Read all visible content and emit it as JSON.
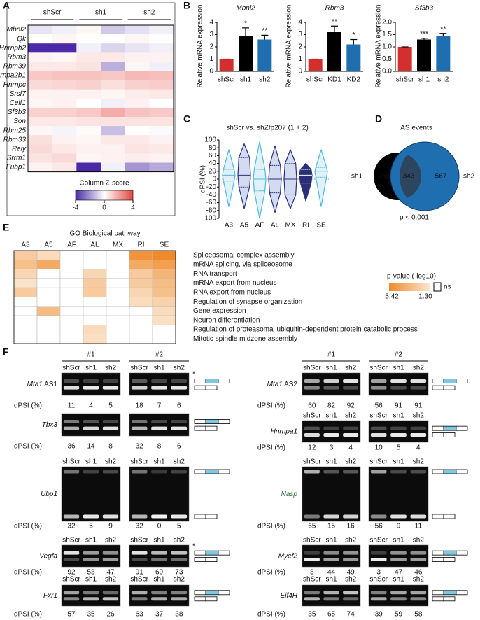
{
  "panel_labels": [
    "A",
    "B",
    "C",
    "D",
    "E",
    "F"
  ],
  "heatmap": {
    "groups": [
      "shScr",
      "sh1",
      "sh2"
    ],
    "genes": [
      "Mbnl2",
      "Qk",
      "Hnrnph2",
      "Rbm3",
      "Rbm39",
      "Hnrnpa2b1",
      "Hnrnpc",
      "Srsf7",
      "Celf1",
      "Sf3b3",
      "Son",
      "Rbm25",
      "Rbm33",
      "Raly",
      "Srrm1",
      "Fubp1"
    ],
    "values": [
      [
        -0.5,
        -0.3,
        0.2,
        -1,
        -0.6,
        -0.3
      ],
      [
        0,
        0.2,
        0,
        0,
        0.2,
        0
      ],
      [
        -4,
        -4,
        -0.3,
        -0.8,
        -0.5,
        -0.3
      ],
      [
        0.3,
        0.2,
        0.5,
        0.5,
        0.3,
        0.3
      ],
      [
        0.5,
        0.5,
        0.6,
        -1.5,
        0.2,
        -0.3
      ],
      [
        1.2,
        1.3,
        1.3,
        1.2,
        1.5,
        1.4
      ],
      [
        0.8,
        0.9,
        1,
        0.7,
        1,
        1.1
      ],
      [
        0.3,
        0.3,
        0.3,
        0.2,
        0.4,
        0.5
      ],
      [
        0.2,
        0.3,
        0,
        -0.3,
        0.3,
        0
      ],
      [
        1,
        1,
        1.2,
        1.8,
        1.3,
        1.2
      ],
      [
        0.5,
        0.5,
        0.6,
        0.6,
        0.6,
        0.6
      ],
      [
        0.2,
        -0.2,
        0.1,
        -1.2,
        0,
        -0.1
      ],
      [
        0.7,
        0.3,
        0.2,
        0.5,
        0.5,
        0.3
      ],
      [
        0.8,
        0.5,
        0.3,
        0.3,
        0.6,
        0.5
      ],
      [
        0.6,
        0.8,
        0.2,
        0.3,
        0.4,
        0.3
      ],
      [
        0.3,
        0.5,
        -4,
        -0.3,
        -2,
        -1.6
      ]
    ],
    "colorbar_label": "Column Z-score",
    "zlim": [
      -4,
      4
    ],
    "zticks": [
      -4,
      0,
      4
    ],
    "low_color": "#4a2aa6",
    "mid_color": "#ffffff",
    "high_color": "#e4473f"
  },
  "chart_data": [
    {
      "type": "bar",
      "title": "Mbnl2",
      "ylabel": "Relative mRNA expression",
      "categories": [
        "shScr",
        "sh1",
        "sh2"
      ],
      "values": [
        1,
        2.9,
        2.6
      ],
      "errors": [
        0,
        0.65,
        0.35
      ],
      "annotations": [
        null,
        "*",
        "**"
      ],
      "colors": [
        "#d32f2f",
        "#000000",
        "#1f6fb0"
      ],
      "ylim": [
        0,
        4
      ],
      "yticks": [
        0,
        1,
        2,
        3,
        4
      ]
    },
    {
      "type": "bar",
      "title": "Rbm3",
      "ylabel": "Relative mRNA expression",
      "categories": [
        "shScr",
        "KD1",
        "KD2"
      ],
      "values": [
        1,
        3.2,
        2.2
      ],
      "errors": [
        0,
        0.5,
        0.4
      ],
      "annotations": [
        null,
        "**",
        "*"
      ],
      "colors": [
        "#d32f2f",
        "#000000",
        "#1f6fb0"
      ],
      "ylim": [
        0,
        4
      ],
      "yticks": [
        0,
        1,
        2,
        3,
        4
      ]
    },
    {
      "type": "bar",
      "title": "Sf3b3",
      "ylabel": "Relative mRNA expression",
      "categories": [
        "shScr",
        "sh1",
        "sh2"
      ],
      "values": [
        1,
        1.3,
        1.45
      ],
      "errors": [
        0,
        0.05,
        0.1
      ],
      "annotations": [
        null,
        "***",
        "**"
      ],
      "colors": [
        "#d32f2f",
        "#000000",
        "#1f6fb0"
      ],
      "ylim": [
        0,
        2
      ],
      "yticks": [
        {
          "value": 0,
          "label": "0.0"
        },
        {
          "value": 0.5,
          "label": "0.5"
        },
        {
          "value": 1,
          "label": "1.0"
        },
        {
          "value": 1.5,
          "label": "1.5"
        },
        {
          "value": 2,
          "label": "2.0"
        }
      ]
    },
    {
      "type": "violin",
      "title": "shScr vs. shZfp207 (1 + 2)",
      "ylabel": "dPSI (%)",
      "categories": [
        "A3",
        "A5",
        "AF",
        "AL",
        "MX",
        "RI",
        "SE"
      ],
      "min": [
        -70,
        -75,
        -100,
        -85,
        -75,
        -55,
        -70
      ],
      "q1": [
        -5,
        -20,
        -30,
        -35,
        -40,
        -10,
        5
      ],
      "median": [
        10,
        10,
        0,
        0,
        0,
        10,
        20
      ],
      "q3": [
        25,
        55,
        25,
        35,
        40,
        25,
        30
      ],
      "max": [
        75,
        90,
        95,
        85,
        75,
        40,
        75
      ],
      "colors": [
        "#4fb8dc",
        "#2b2f7a",
        "#4fb8dc",
        "#2b2f7a",
        "#2b2f7a",
        "#2b2f7a",
        "#4fb8dc"
      ],
      "fills": [
        "#dff2f9",
        "#d3dbf0",
        "#dff2f9",
        "#d3dbf0",
        "#d3dbf0",
        "#2b2f7a",
        "#dff2f9"
      ],
      "ylim": [
        -100,
        100
      ],
      "yticks": [
        -100,
        -80,
        -60,
        -40,
        -20,
        0,
        20,
        40,
        60,
        80,
        100
      ],
      "zero_line": true
    }
  ],
  "venn": {
    "title": "AS events",
    "sets": [
      "sh1",
      "sh2"
    ],
    "counts": [
      258,
      343,
      567
    ],
    "colors": [
      "#000000",
      "#1f6fb0"
    ],
    "note": "p < 0.001"
  },
  "go": {
    "title": "GO Biological pathway",
    "columns": [
      "A3",
      "A5",
      "AF",
      "AL",
      "MX",
      "RI",
      "SE"
    ],
    "terms": [
      "Spliceosomal complex assembly",
      "mRNA splicing, via spliceosome",
      "RNA transport",
      "mRNA export from nucleus",
      "RNA export from nucleus",
      "Regulation of synapse organization",
      "Gene expression",
      "Neuron differentiation",
      "Regulation of proteasomal ubiquitin-dependent protein catabolic process",
      "Mitotic spindle midzone assembly"
    ],
    "values": [
      [
        2.5,
        1.8,
        null,
        null,
        null,
        5,
        5.4
      ],
      [
        3,
        4,
        null,
        null,
        null,
        4,
        4.5
      ],
      [
        2,
        null,
        null,
        2,
        null,
        2.5,
        3.5
      ],
      [
        1.5,
        null,
        null,
        2.5,
        null,
        2.5,
        3.2
      ],
      [
        2.5,
        null,
        null,
        2.5,
        null,
        2,
        3
      ],
      [
        null,
        null,
        null,
        null,
        null,
        1.8,
        2.2
      ],
      [
        null,
        3.2,
        null,
        null,
        null,
        null,
        1.8
      ],
      [
        null,
        null,
        null,
        null,
        null,
        null,
        1.6
      ],
      [
        null,
        null,
        null,
        1.8,
        null,
        null,
        null
      ],
      [
        null,
        null,
        null,
        1.6,
        null,
        null,
        null
      ]
    ],
    "legend_title": "p-value (-log10)",
    "scale": [
      5.42,
      {
        "value": 1.3,
        "label": "1.30"
      }
    ],
    "ns_label": "ns",
    "high_color": "#ef8a2a",
    "low_color": "#fbe6cf"
  },
  "gels": {
    "groups": [
      "#1",
      "#2"
    ],
    "dpsi_label": "dPSI (%)",
    "marker_color": "#7ec8e3",
    "left": [
      {
        "gene": "Mta1",
        "suffix": "AS1",
        "lanes": [
          "shScr",
          "sh1",
          "sh2"
        ],
        "dpsi": [
          [
            11,
            4,
            5
          ],
          [
            18,
            7,
            6
          ]
        ],
        "marker": "*"
      },
      {
        "gene": "Tbx3",
        "dpsi": [
          [
            36,
            14,
            8
          ],
          [
            32,
            8,
            6
          ]
        ]
      },
      {
        "gene": "Ubp1",
        "lanes": [
          "shScr",
          "sh1",
          "sh2"
        ],
        "dpsi": [
          [
            32,
            5,
            9
          ],
          [
            32,
            0,
            5
          ]
        ]
      },
      {
        "gene": "Vegfa",
        "lanes": [
          "shScr",
          "sh1",
          "sh2"
        ],
        "dpsi": [
          [
            92,
            53,
            47
          ],
          [
            91,
            69,
            73
          ]
        ],
        "marker": "*"
      },
      {
        "gene": "Fxr1",
        "lanes": [
          "shScr",
          "sh1",
          "sh2"
        ],
        "dpsi": [
          [
            57,
            35,
            26
          ],
          [
            63,
            37,
            38
          ]
        ]
      }
    ],
    "right": [
      {
        "gene": "Mta1",
        "suffix": "AS2",
        "lanes": [
          "shScr",
          "sh1",
          "sh2"
        ],
        "dpsi": [
          [
            60,
            82,
            92
          ],
          [
            56,
            91,
            91
          ]
        ]
      },
      {
        "gene": "Hnrnpa1",
        "lanes": [
          "shScr",
          "sh1",
          "sh2"
        ],
        "dpsi": [
          [
            12,
            3,
            4
          ],
          [
            10,
            5,
            4
          ]
        ]
      },
      {
        "gene": "Nasp",
        "color": "#2e6b3a",
        "lanes": [
          "shScr",
          "sh1",
          "sh2"
        ],
        "dpsi": [
          [
            65,
            15,
            16
          ],
          [
            56,
            9,
            11
          ]
        ]
      },
      {
        "gene": "Myef2",
        "lanes": [
          "shScr",
          "sh1",
          "sh2"
        ],
        "dpsi": [
          [
            3,
            44,
            49
          ],
          [
            3,
            47,
            46
          ]
        ]
      },
      {
        "gene": "Eif4H",
        "lanes": [
          "shScr",
          "sh1",
          "sh2"
        ],
        "dpsi": [
          [
            35,
            65,
            74
          ],
          [
            39,
            59,
            58
          ]
        ]
      }
    ]
  }
}
